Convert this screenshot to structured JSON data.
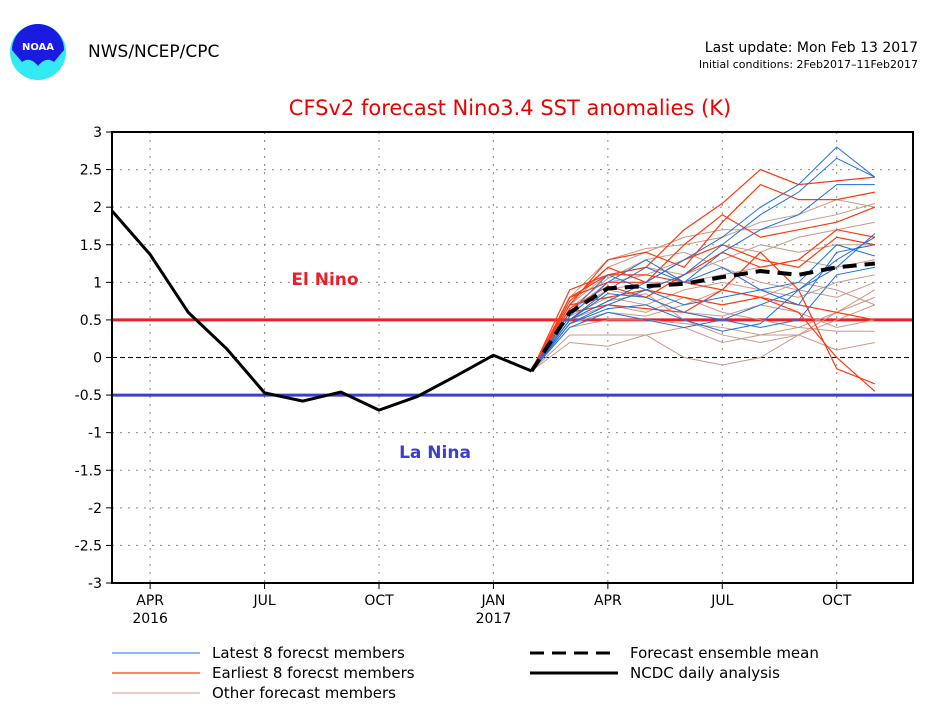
{
  "header": {
    "org": "NWS/NCEP/CPC",
    "last_update": "Last update: Mon Feb 13 2017",
    "initial_conditions": "Initial conditions: 2Feb2017–11Feb2017",
    "logo_text": "NOAA"
  },
  "chart_data": {
    "type": "line",
    "title": "CFSv2 forecast Nino3.4 SST anomalies (K)",
    "ylim": [
      -3,
      3
    ],
    "yticks": [
      3,
      2.5,
      2,
      1.5,
      1,
      0.5,
      0,
      -0.5,
      -1,
      -1.5,
      -2,
      -2.5,
      -3
    ],
    "ytick_labels": [
      "3",
      "2.5",
      "2",
      "1.5",
      "1",
      "0.5",
      "0",
      "-0.5",
      "-1",
      "-1.5",
      "-2",
      "-2.5",
      "-3"
    ],
    "xlim": [
      "2016-03",
      "2017-12"
    ],
    "xticks": [
      {
        "month": "2016-04",
        "label": "APR",
        "sub": "2016"
      },
      {
        "month": "2016-07",
        "label": "JUL",
        "sub": ""
      },
      {
        "month": "2016-10",
        "label": "OCT",
        "sub": ""
      },
      {
        "month": "2017-01",
        "label": "JAN",
        "sub": "2017"
      },
      {
        "month": "2017-04",
        "label": "APR",
        "sub": ""
      },
      {
        "month": "2017-07",
        "label": "JUL",
        "sub": ""
      },
      {
        "month": "2017-10",
        "label": "OCT",
        "sub": ""
      }
    ],
    "grid": true,
    "thresholds": [
      {
        "value": 0.5,
        "label": "El Nino",
        "color": "#e8202a"
      },
      {
        "value": -0.5,
        "label": "La Nina",
        "color": "#3b3fd0"
      }
    ],
    "observed": {
      "name": "NCDC daily analysis",
      "color": "#000000",
      "x": [
        "2016-03",
        "2016-04",
        "2016-05",
        "2016-06",
        "2016-07",
        "2016-08",
        "2016-09",
        "2016-10",
        "2016-11",
        "2016-12",
        "2017-01",
        "2017-02"
      ],
      "values": [
        1.95,
        1.37,
        0.6,
        0.12,
        -0.47,
        -0.58,
        -0.46,
        -0.7,
        -0.52,
        -0.25,
        0.03,
        -0.18
      ]
    },
    "forecast_x": [
      "2017-02",
      "2017-03",
      "2017-04",
      "2017-05",
      "2017-06",
      "2017-07",
      "2017-08",
      "2017-09",
      "2017-10",
      "2017-11"
    ],
    "ensemble_mean": {
      "name": "Forecast ensemble mean",
      "color": "#000000",
      "values": [
        -0.18,
        0.6,
        0.92,
        0.95,
        0.98,
        1.07,
        1.15,
        1.1,
        1.2,
        1.25
      ]
    },
    "latest_members": {
      "name": "Latest 8 forecst members",
      "color": "#1f6fe0",
      "values": [
        [
          -0.18,
          0.5,
          0.75,
          1.0,
          1.3,
          1.6,
          2.0,
          2.3,
          2.8,
          2.4
        ],
        [
          -0.18,
          0.45,
          0.7,
          0.9,
          1.1,
          1.5,
          1.9,
          2.2,
          2.65,
          2.4
        ],
        [
          -0.18,
          0.55,
          1.0,
          1.3,
          1.0,
          1.4,
          1.7,
          1.9,
          2.3,
          2.3
        ],
        [
          -0.18,
          0.4,
          0.6,
          0.5,
          0.4,
          0.5,
          0.7,
          0.9,
          1.3,
          1.6
        ],
        [
          -0.18,
          0.5,
          0.85,
          0.8,
          0.6,
          0.5,
          0.4,
          0.5,
          1.1,
          1.2
        ],
        [
          -0.18,
          0.6,
          1.1,
          0.9,
          0.7,
          0.8,
          0.9,
          0.7,
          1.4,
          1.5
        ],
        [
          -0.18,
          0.45,
          0.65,
          0.7,
          0.5,
          0.35,
          0.45,
          0.9,
          1.2,
          1.65
        ],
        [
          -0.18,
          0.5,
          0.9,
          1.2,
          1.0,
          1.2,
          0.9,
          1.0,
          1.5,
          1.35
        ]
      ]
    },
    "earliest_members": {
      "name": "Earliest 8 forecst members",
      "color": "#ff3a10",
      "values": [
        [
          -0.18,
          0.8,
          1.1,
          1.2,
          1.7,
          2.05,
          2.5,
          2.3,
          2.35,
          2.4
        ],
        [
          -0.18,
          0.7,
          1.3,
          1.4,
          1.2,
          1.8,
          2.3,
          2.1,
          2.1,
          2.2
        ],
        [
          -0.18,
          0.75,
          1.2,
          1.0,
          1.5,
          1.9,
          1.6,
          1.7,
          1.8,
          2.0
        ],
        [
          -0.18,
          0.6,
          0.7,
          0.65,
          0.6,
          0.9,
          1.4,
          0.9,
          -0.15,
          -0.35
        ],
        [
          -0.18,
          0.7,
          0.8,
          0.9,
          0.8,
          0.7,
          0.8,
          0.6,
          0.0,
          -0.45
        ],
        [
          -0.18,
          0.8,
          1.0,
          1.0,
          1.3,
          1.5,
          1.3,
          1.2,
          1.6,
          1.5
        ],
        [
          -0.18,
          0.65,
          0.95,
          0.8,
          1.1,
          1.4,
          1.2,
          1.3,
          1.7,
          1.6
        ],
        [
          -0.18,
          0.9,
          1.1,
          1.1,
          1.0,
          0.9,
          0.8,
          0.7,
          0.6,
          0.5
        ]
      ]
    },
    "other_members": {
      "name": "Other forecast members",
      "color": "#c8998a",
      "values": [
        [
          -0.18,
          0.8,
          1.3,
          1.45,
          1.5,
          1.6,
          1.8,
          1.9,
          2.1,
          2.0
        ],
        [
          -0.18,
          0.7,
          1.2,
          1.4,
          1.6,
          1.7,
          1.7,
          1.8,
          1.9,
          2.05
        ],
        [
          -0.18,
          0.6,
          1.0,
          1.1,
          1.3,
          1.5,
          1.4,
          1.6,
          1.7,
          1.8
        ],
        [
          -0.18,
          0.5,
          0.9,
          1.0,
          1.0,
          1.1,
          1.2,
          1.3,
          1.2,
          1.3
        ],
        [
          -0.18,
          0.55,
          0.8,
          0.7,
          0.9,
          1.0,
          0.9,
          0.8,
          1.0,
          1.1
        ],
        [
          -0.18,
          0.4,
          0.5,
          0.5,
          0.45,
          0.4,
          0.3,
          0.3,
          0.5,
          0.7
        ],
        [
          -0.18,
          0.3,
          0.3,
          0.3,
          0.4,
          0.2,
          0.3,
          0.4,
          0.35,
          0.35
        ],
        [
          -0.18,
          0.2,
          0.15,
          0.3,
          0.0,
          -0.1,
          0.0,
          0.3,
          0.1,
          0.2
        ],
        [
          -0.18,
          0.5,
          0.7,
          0.6,
          0.8,
          0.6,
          0.5,
          0.4,
          0.6,
          0.8
        ],
        [
          -0.18,
          0.6,
          0.9,
          0.8,
          0.6,
          0.55,
          0.7,
          0.6,
          0.4,
          0.5
        ],
        [
          -0.18,
          0.45,
          0.6,
          0.55,
          0.7,
          0.9,
          0.8,
          1.0,
          0.9,
          0.7
        ],
        [
          -0.18,
          0.7,
          1.1,
          1.2,
          1.1,
          1.3,
          1.5,
          1.4,
          1.5,
          1.5
        ],
        [
          -0.18,
          0.5,
          0.75,
          0.85,
          0.5,
          0.3,
          0.2,
          0.3,
          0.6,
          0.9
        ],
        [
          -0.18,
          0.65,
          1.05,
          1.3,
          1.4,
          1.2,
          1.0,
          0.9,
          0.8,
          1.0
        ]
      ]
    }
  }
}
